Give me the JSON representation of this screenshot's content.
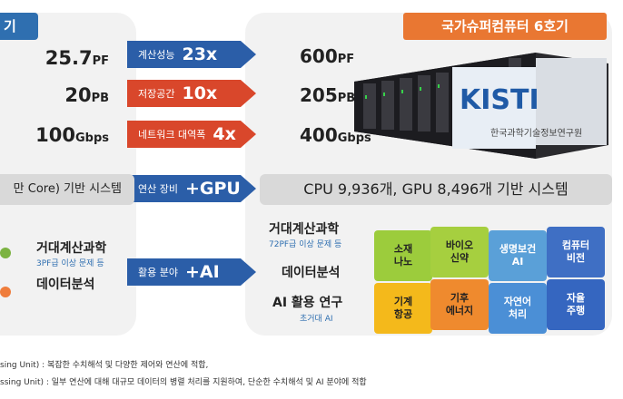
{
  "left": {
    "tab": "기",
    "values": [
      {
        "num": "25.7",
        "unit": "PF"
      },
      {
        "num": "20",
        "unit": "PB"
      },
      {
        "num": "100",
        "unit": "Gbps"
      }
    ],
    "system": "만 Core) 기반 시스템",
    "uses": [
      {
        "label": "거대계산과학",
        "sub": "3PF급 이상 문제 등",
        "color": "#7cb342"
      },
      {
        "label": "데이터분석",
        "sub": "",
        "color": "#ef7d3c"
      }
    ]
  },
  "arrows": [
    {
      "label": "계산성능",
      "value": "23x",
      "color": "#2b5ea8"
    },
    {
      "label": "저장공간",
      "value": "10x",
      "color": "#d9472b"
    },
    {
      "label": "네트워크 대역폭",
      "value": "4x",
      "color": "#d9472b"
    },
    {
      "label": "연산 장비",
      "value": "+GPU",
      "color": "#2b5ea8"
    },
    {
      "label": "활용 분야",
      "value": "+AI",
      "color": "#2b5ea8"
    }
  ],
  "right": {
    "tab": "국가슈퍼컴퓨터 6호기",
    "values": [
      {
        "num": "600",
        "unit": "PF"
      },
      {
        "num": "205",
        "unit": "PB"
      },
      {
        "num": "400",
        "unit": "Gbps"
      }
    ],
    "system": "CPU 9,936개, GPU 8,496개 기반 시스템",
    "uses": [
      {
        "label": "거대계산과학",
        "sub": "72PF급 이상 문제 등"
      },
      {
        "label": "데이터분석",
        "sub": ""
      },
      {
        "label": "AI 활용 연구",
        "sub": "초거대 AI"
      }
    ],
    "server_logo": "KISTI",
    "server_caption": "한국과학기술정보연구원",
    "puzzle": [
      {
        "text": "소재\n나노",
        "color": "#9ccc3c"
      },
      {
        "text": "바이오\n신약",
        "color": "#a6cf3f"
      },
      {
        "text": "생명보건\nAI",
        "color": "#5aa0d8"
      },
      {
        "text": "컴퓨터\n비전",
        "color": "#3f6fc4"
      },
      {
        "text": "기계\n항공",
        "color": "#f4b91b"
      },
      {
        "text": "기후\n에너지",
        "color": "#ef8a2e"
      },
      {
        "text": "자연어\n처리",
        "color": "#4b8fd6"
      },
      {
        "text": "자율\n주행",
        "color": "#3566c0"
      }
    ]
  },
  "footnotes": [
    "sing Unit) : 복잡한 수치해석 및 다양한 제어와 연산에 적합,",
    "ssing Unit) : 일부 연산에 대해 대규모 데이터의 병렬 처리를 지원하여, 단순한 수치해석 및 AI 분야에 적합"
  ]
}
